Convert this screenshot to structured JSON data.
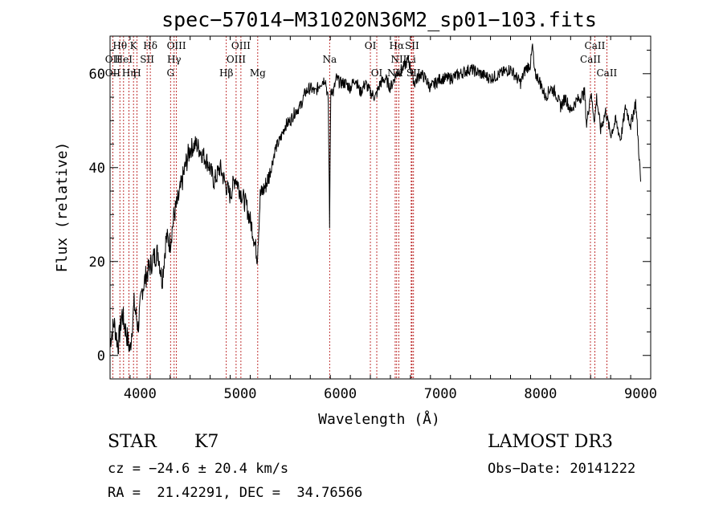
{
  "chart_data": {
    "type": "line",
    "title": "spec−57014−M31020N36M2_sp01−103.fits",
    "xlabel": "Wavelength (Å)",
    "ylabel": "Flux (relative)",
    "xlim": [
      3700,
      9100
    ],
    "ylim": [
      -5,
      68
    ],
    "x_ticks": [
      4000,
      5000,
      6000,
      7000,
      8000,
      9000
    ],
    "y_ticks": [
      0,
      20,
      40,
      60
    ],
    "x_minor_step": 200,
    "y_minor_step": 5,
    "grid": false,
    "series": [
      {
        "name": "spectrum",
        "x": [
          3700,
          3740,
          3780,
          3820,
          3860,
          3900,
          3940,
          3980,
          4020,
          4060,
          4100,
          4140,
          4180,
          4220,
          4260,
          4300,
          4340,
          4380,
          4420,
          4460,
          4500,
          4560,
          4620,
          4680,
          4740,
          4800,
          4860,
          4900,
          4950,
          5000,
          5060,
          5120,
          5170,
          5185,
          5200,
          5250,
          5300,
          5350,
          5400,
          5450,
          5500,
          5550,
          5600,
          5650,
          5700,
          5750,
          5800,
          5850,
          5880,
          5893,
          5905,
          5930,
          5960,
          6000,
          6050,
          6100,
          6150,
          6200,
          6250,
          6300,
          6350,
          6400,
          6450,
          6500,
          6560,
          6620,
          6680,
          6740,
          6800,
          6850,
          6900,
          6950,
          7000,
          7100,
          7200,
          7300,
          7400,
          7500,
          7600,
          7700,
          7800,
          7850,
          7900,
          7920,
          7940,
          7980,
          8050,
          8100,
          8150,
          8200,
          8250,
          8300,
          8350,
          8400,
          8440,
          8460,
          8500,
          8540,
          8560,
          8600,
          8650,
          8700,
          8750,
          8800,
          8850,
          8900,
          8950,
          8980,
          9000
        ],
        "y": [
          3,
          7,
          2,
          9,
          5,
          1,
          11,
          6,
          14,
          17,
          19,
          21,
          22,
          16,
          25,
          24,
          30,
          33,
          37,
          41,
          44,
          45,
          43,
          41,
          37,
          40,
          36,
          34,
          38,
          35,
          32,
          27,
          21,
          27,
          34,
          36,
          39,
          44,
          46,
          49,
          50,
          52,
          53,
          56,
          57,
          56,
          58,
          59,
          54,
          28,
          57,
          56,
          59,
          58,
          58,
          57,
          59,
          56,
          58,
          56,
          55,
          58,
          59,
          57,
          60,
          61,
          63,
          58,
          60,
          59,
          57,
          58,
          59,
          59,
          60,
          61,
          60,
          59,
          60,
          61,
          58,
          61,
          62,
          66,
          60,
          59,
          55,
          57,
          56,
          53,
          55,
          52,
          54,
          55,
          56,
          49,
          56,
          50,
          55,
          48,
          52,
          47,
          50,
          46,
          53,
          49,
          54,
          44,
          37
        ]
      }
    ],
    "spectral_lines": [
      {
        "label": "Hθ",
        "wave": 3798,
        "row": 1
      },
      {
        "label": "OII",
        "wave": 3727,
        "row": 2
      },
      {
        "label": "OII",
        "wave": 3727,
        "row": 3
      },
      {
        "label": "HeI",
        "wave": 3835,
        "row": 2
      },
      {
        "label": "Hη",
        "wave": 3889,
        "row": 3
      },
      {
        "label": "K",
        "wave": 3934,
        "row": 1
      },
      {
        "label": "SII",
        "wave": 4070,
        "row": 2
      },
      {
        "label": "H",
        "wave": 3969,
        "row": 3
      },
      {
        "label": "Hδ",
        "wave": 4102,
        "row": 1
      },
      {
        "label": "OIII",
        "wave": 4363,
        "row": 1
      },
      {
        "label": "Hγ",
        "wave": 4340,
        "row": 2
      },
      {
        "label": "G",
        "wave": 4304,
        "row": 3
      },
      {
        "label": "Hβ",
        "wave": 4861,
        "row": 3
      },
      {
        "label": "OIII",
        "wave": 5007,
        "row": 1
      },
      {
        "label": "OIII",
        "wave": 4959,
        "row": 2
      },
      {
        "label": "Mg",
        "wave": 5175,
        "row": 3
      },
      {
        "label": "Na",
        "wave": 5893,
        "row": 2
      },
      {
        "label": "OI",
        "wave": 6300,
        "row": 1
      },
      {
        "label": "OI",
        "wave": 6364,
        "row": 3
      },
      {
        "label": "Hα",
        "wave": 6563,
        "row": 1
      },
      {
        "label": "SII",
        "wave": 6716,
        "row": 1
      },
      {
        "label": "NII",
        "wave": 6584,
        "row": 2
      },
      {
        "label": "Li",
        "wave": 6708,
        "row": 2
      },
      {
        "label": "NII",
        "wave": 6548,
        "row": 3
      },
      {
        "label": "SII",
        "wave": 6731,
        "row": 3
      },
      {
        "label": "CaII",
        "wave": 8542,
        "row": 1
      },
      {
        "label": "CaII",
        "wave": 8498,
        "row": 2
      },
      {
        "label": "CaII",
        "wave": 8662,
        "row": 3
      }
    ],
    "colors": {
      "spectrum": "#000000",
      "lines": "#b00000",
      "axes": "#000000"
    }
  },
  "info": {
    "object_class": "STAR",
    "subclass": "K7",
    "survey": "LAMOST DR3",
    "cz": "cz = −24.6 ± 20.4 km/s",
    "obs_date": "Obs−Date: 20141222",
    "coords": "RA =  21.42291, DEC =  34.76566"
  }
}
